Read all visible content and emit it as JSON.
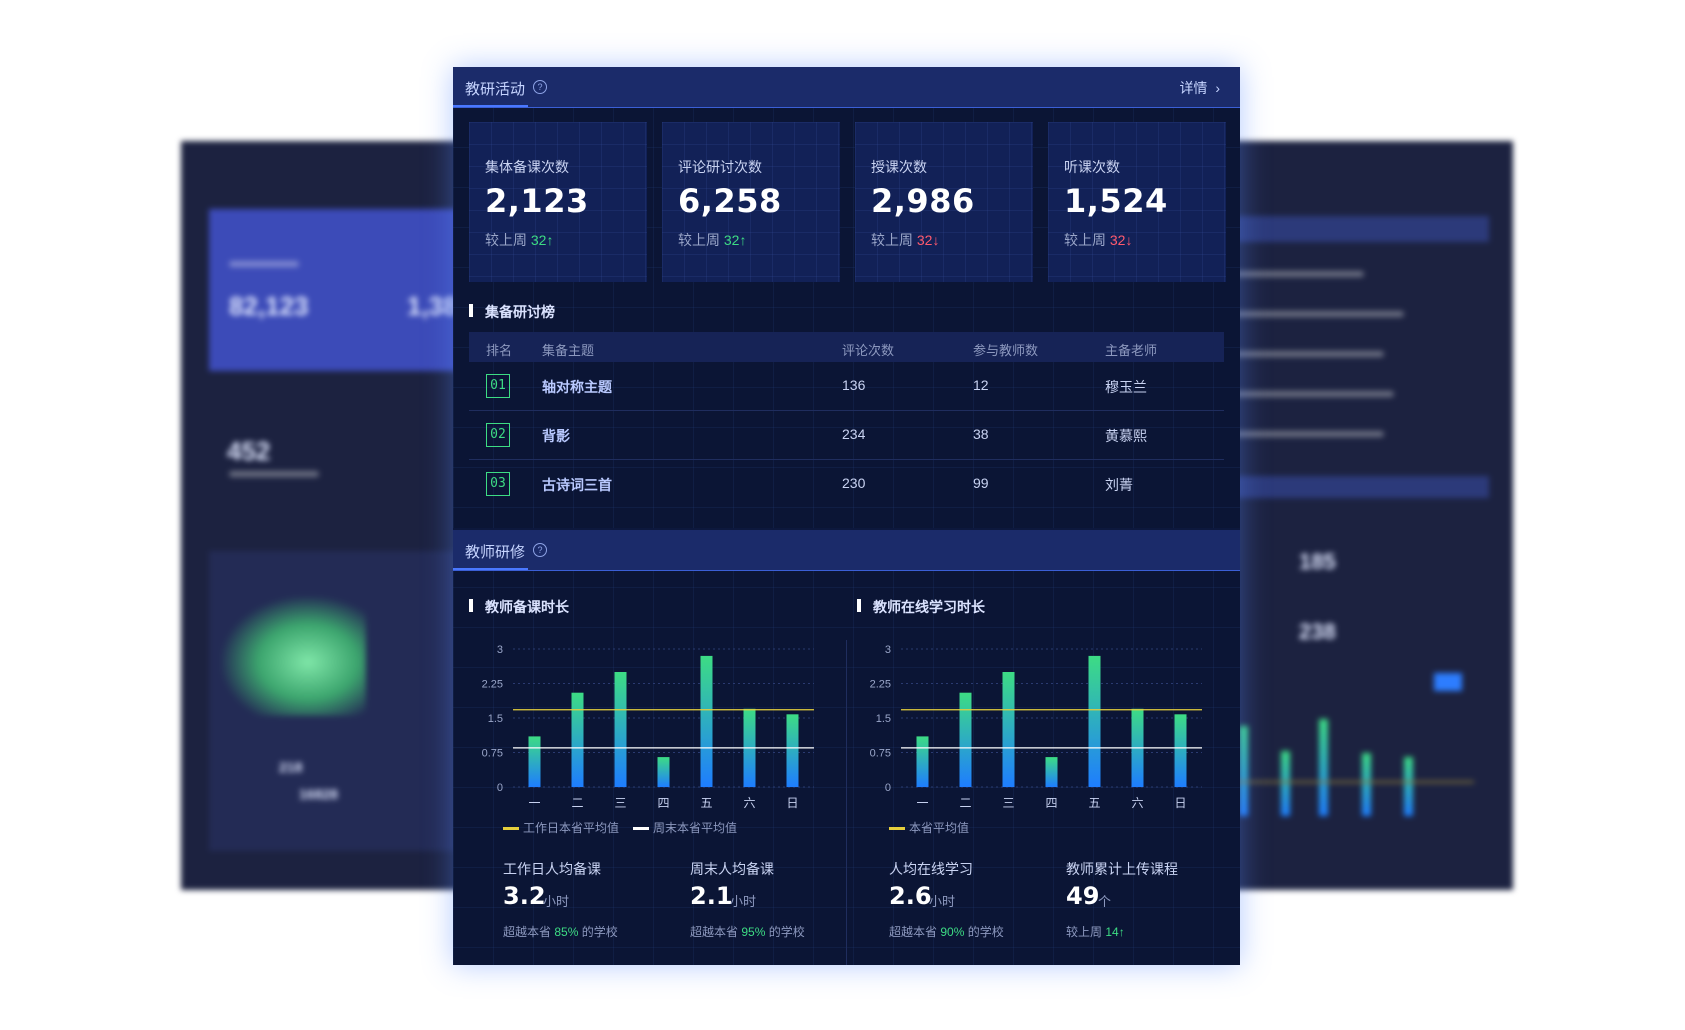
{
  "research": {
    "title": "教研活动",
    "detail_label": "详情",
    "stats": [
      {
        "label": "集体备课次数",
        "value": "2,123",
        "change_prefix": "较上周",
        "change_value": "32",
        "trend": "up"
      },
      {
        "label": "评论研讨次数",
        "value": "6,258",
        "change_prefix": "较上周",
        "change_value": "32",
        "trend": "up"
      },
      {
        "label": "授课次数",
        "value": "2,986",
        "change_prefix": "较上周",
        "change_value": "32",
        "trend": "down"
      },
      {
        "label": "听课次数",
        "value": "1,524",
        "change_prefix": "较上周",
        "change_value": "32",
        "trend": "down"
      }
    ],
    "ranking": {
      "title": "集备研讨榜",
      "columns": [
        "排名",
        "集备主题",
        "评论次数",
        "参与教师数",
        "主备老师"
      ],
      "rows": [
        {
          "rank": "01",
          "topic": "轴对称主题",
          "comments": "136",
          "teachers": "12",
          "host": "穆玉兰"
        },
        {
          "rank": "02",
          "topic": "背影",
          "comments": "234",
          "teachers": "38",
          "host": "黄慕熙"
        },
        {
          "rank": "03",
          "topic": "古诗词三首",
          "comments": "230",
          "teachers": "99",
          "host": "刘菁"
        }
      ]
    }
  },
  "training": {
    "title": "教师研修",
    "prep": {
      "title": "教师备课时长",
      "legend": [
        "工作日本省平均值",
        "周末本省平均值"
      ],
      "metrics": [
        {
          "label": "工作日人均备课",
          "value": "3.2",
          "unit": "小时",
          "note_prefix": "超越本省",
          "note_value": "85%",
          "note_suffix": "的学校"
        },
        {
          "label": "周末人均备课",
          "value": "2.1",
          "unit": "小时",
          "note_prefix": "超越本省",
          "note_value": "95%",
          "note_suffix": "的学校"
        }
      ]
    },
    "online": {
      "title": "教师在线学习时长",
      "legend": [
        "本省平均值"
      ],
      "metrics": [
        {
          "label": "人均在线学习",
          "value": "2.6",
          "unit": "小时",
          "note_prefix": "超越本省",
          "note_value": "90%",
          "note_suffix": "的学校"
        },
        {
          "label": "教师累计上传课程",
          "value": "49",
          "unit": "个",
          "note_prefix": "较上周",
          "note_value": "14",
          "note_suffix": ""
        }
      ]
    }
  },
  "chart_data": [
    {
      "type": "bar",
      "title": "教师备课时长",
      "categories": [
        "一",
        "二",
        "三",
        "四",
        "五",
        "六",
        "日"
      ],
      "values": [
        1.1,
        2.05,
        2.5,
        0.65,
        2.85,
        1.7,
        1.58
      ],
      "ylim": [
        0,
        3
      ],
      "yticks": [
        "0",
        "0.75",
        "1.5",
        "2.25",
        "3"
      ],
      "reference_lines": [
        {
          "name": "工作日本省平均值",
          "value": 1.68,
          "color": "#e6cf3c"
        },
        {
          "name": "周末本省平均值",
          "value": 0.85,
          "color": "#ffffff"
        }
      ],
      "grid": true
    },
    {
      "type": "bar",
      "title": "教师在线学习时长",
      "categories": [
        "一",
        "二",
        "三",
        "四",
        "五",
        "六",
        "日"
      ],
      "values": [
        1.1,
        2.05,
        2.5,
        0.65,
        2.85,
        1.7,
        1.58
      ],
      "ylim": [
        0,
        3
      ],
      "yticks": [
        "0",
        "0.75",
        "1.5",
        "2.25",
        "3"
      ],
      "reference_lines": [
        {
          "name": "本省平均值",
          "value": 1.68,
          "color": "#e6cf3c"
        },
        {
          "value": 0.85,
          "color": "#ffffff"
        }
      ],
      "grid": true
    }
  ],
  "background_left": {
    "kpi1": "82,123",
    "kpi2": "1,38",
    "kpi3": "452",
    "count1": "218",
    "count2": "16828"
  },
  "background_right": {
    "kpi1": "185",
    "kpi2": "238"
  },
  "colors": {
    "bg": "#0b1535",
    "header": "#1b2b6a",
    "accent": "#4a78ff",
    "up": "#3ddc84",
    "down": "#ff5a6e",
    "bar_top": "#3ddc84",
    "bar_bottom": "#1e7dff"
  }
}
